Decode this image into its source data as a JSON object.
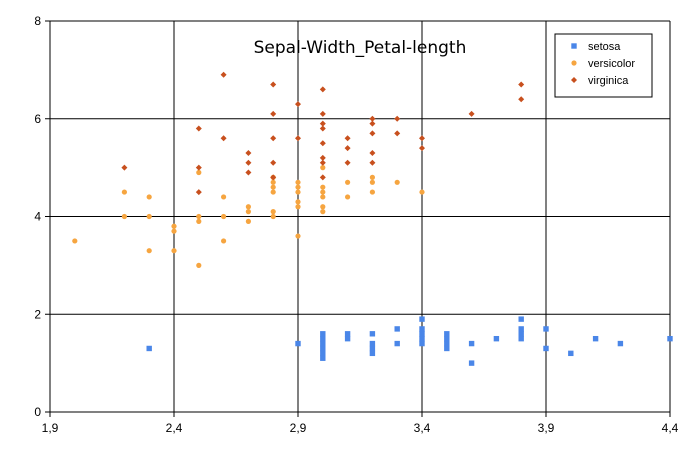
{
  "chart_data": {
    "type": "scatter",
    "title": "Sepal-Width_Petal-length",
    "xlabel": "",
    "ylabel": "",
    "xlim": [
      1.9,
      4.4
    ],
    "ylim": [
      0,
      8
    ],
    "x_ticks": [
      "1,9",
      "2,4",
      "2,9",
      "3,4",
      "3,9",
      "4,4"
    ],
    "y_ticks": [
      "0",
      "2",
      "4",
      "6",
      "8"
    ],
    "grid": true,
    "legend_position": "top-right",
    "series": [
      {
        "name": "setosa",
        "color": "#4a86e8",
        "marker": "square",
        "points": [
          [
            2.3,
            1.3
          ],
          [
            2.9,
            1.4
          ],
          [
            3.0,
            1.1
          ],
          [
            3.0,
            1.2
          ],
          [
            3.0,
            1.3
          ],
          [
            3.0,
            1.4
          ],
          [
            3.0,
            1.5
          ],
          [
            3.0,
            1.6
          ],
          [
            3.1,
            1.5
          ],
          [
            3.1,
            1.6
          ],
          [
            3.2,
            1.2
          ],
          [
            3.2,
            1.3
          ],
          [
            3.2,
            1.4
          ],
          [
            3.2,
            1.6
          ],
          [
            3.3,
            1.4
          ],
          [
            3.3,
            1.7
          ],
          [
            3.4,
            1.4
          ],
          [
            3.4,
            1.5
          ],
          [
            3.4,
            1.6
          ],
          [
            3.4,
            1.7
          ],
          [
            3.4,
            1.9
          ],
          [
            3.5,
            1.3
          ],
          [
            3.5,
            1.4
          ],
          [
            3.5,
            1.5
          ],
          [
            3.5,
            1.6
          ],
          [
            3.6,
            1.0
          ],
          [
            3.6,
            1.4
          ],
          [
            3.7,
            1.5
          ],
          [
            3.8,
            1.5
          ],
          [
            3.8,
            1.6
          ],
          [
            3.8,
            1.7
          ],
          [
            3.8,
            1.9
          ],
          [
            3.9,
            1.3
          ],
          [
            3.9,
            1.7
          ],
          [
            4.0,
            1.2
          ],
          [
            4.1,
            1.5
          ],
          [
            4.2,
            1.4
          ],
          [
            4.4,
            1.5
          ]
        ]
      },
      {
        "name": "versicolor",
        "color": "#f6a540",
        "marker": "circle",
        "points": [
          [
            2.0,
            3.5
          ],
          [
            2.2,
            4.0
          ],
          [
            2.2,
            4.5
          ],
          [
            2.3,
            3.3
          ],
          [
            2.3,
            4.0
          ],
          [
            2.3,
            4.4
          ],
          [
            2.4,
            3.3
          ],
          [
            2.4,
            3.7
          ],
          [
            2.4,
            3.8
          ],
          [
            2.5,
            3.0
          ],
          [
            2.5,
            3.9
          ],
          [
            2.5,
            4.0
          ],
          [
            2.5,
            4.9
          ],
          [
            2.6,
            3.5
          ],
          [
            2.6,
            4.0
          ],
          [
            2.6,
            4.4
          ],
          [
            2.7,
            3.9
          ],
          [
            2.7,
            4.1
          ],
          [
            2.7,
            4.2
          ],
          [
            2.8,
            4.0
          ],
          [
            2.8,
            4.1
          ],
          [
            2.8,
            4.5
          ],
          [
            2.8,
            4.6
          ],
          [
            2.8,
            4.7
          ],
          [
            2.8,
            4.8
          ],
          [
            2.9,
            3.6
          ],
          [
            2.9,
            4.2
          ],
          [
            2.9,
            4.3
          ],
          [
            2.9,
            4.5
          ],
          [
            2.9,
            4.6
          ],
          [
            2.9,
            4.7
          ],
          [
            3.0,
            4.1
          ],
          [
            3.0,
            4.2
          ],
          [
            3.0,
            4.4
          ],
          [
            3.0,
            4.5
          ],
          [
            3.0,
            4.6
          ],
          [
            3.0,
            5.0
          ],
          [
            3.1,
            4.4
          ],
          [
            3.1,
            4.7
          ],
          [
            3.2,
            4.5
          ],
          [
            3.2,
            4.7
          ],
          [
            3.2,
            4.8
          ],
          [
            3.3,
            4.7
          ],
          [
            3.4,
            4.5
          ]
        ]
      },
      {
        "name": "virginica",
        "color": "#c8501e",
        "marker": "diamond",
        "points": [
          [
            2.2,
            5.0
          ],
          [
            2.5,
            4.5
          ],
          [
            2.5,
            5.0
          ],
          [
            2.5,
            5.8
          ],
          [
            2.6,
            5.6
          ],
          [
            2.6,
            6.9
          ],
          [
            2.7,
            4.9
          ],
          [
            2.7,
            5.1
          ],
          [
            2.7,
            5.3
          ],
          [
            2.8,
            4.8
          ],
          [
            2.8,
            5.1
          ],
          [
            2.8,
            5.6
          ],
          [
            2.8,
            6.1
          ],
          [
            2.8,
            6.7
          ],
          [
            2.9,
            5.6
          ],
          [
            2.9,
            6.3
          ],
          [
            3.0,
            4.8
          ],
          [
            3.0,
            5.1
          ],
          [
            3.0,
            5.2
          ],
          [
            3.0,
            5.5
          ],
          [
            3.0,
            5.8
          ],
          [
            3.0,
            5.9
          ],
          [
            3.0,
            6.1
          ],
          [
            3.0,
            6.6
          ],
          [
            3.1,
            5.1
          ],
          [
            3.1,
            5.4
          ],
          [
            3.1,
            5.6
          ],
          [
            3.2,
            5.1
          ],
          [
            3.2,
            5.3
          ],
          [
            3.2,
            5.7
          ],
          [
            3.2,
            5.9
          ],
          [
            3.2,
            6.0
          ],
          [
            3.3,
            5.7
          ],
          [
            3.3,
            6.0
          ],
          [
            3.4,
            5.4
          ],
          [
            3.4,
            5.6
          ],
          [
            3.6,
            6.1
          ],
          [
            3.8,
            6.4
          ],
          [
            3.8,
            6.7
          ]
        ]
      }
    ]
  }
}
